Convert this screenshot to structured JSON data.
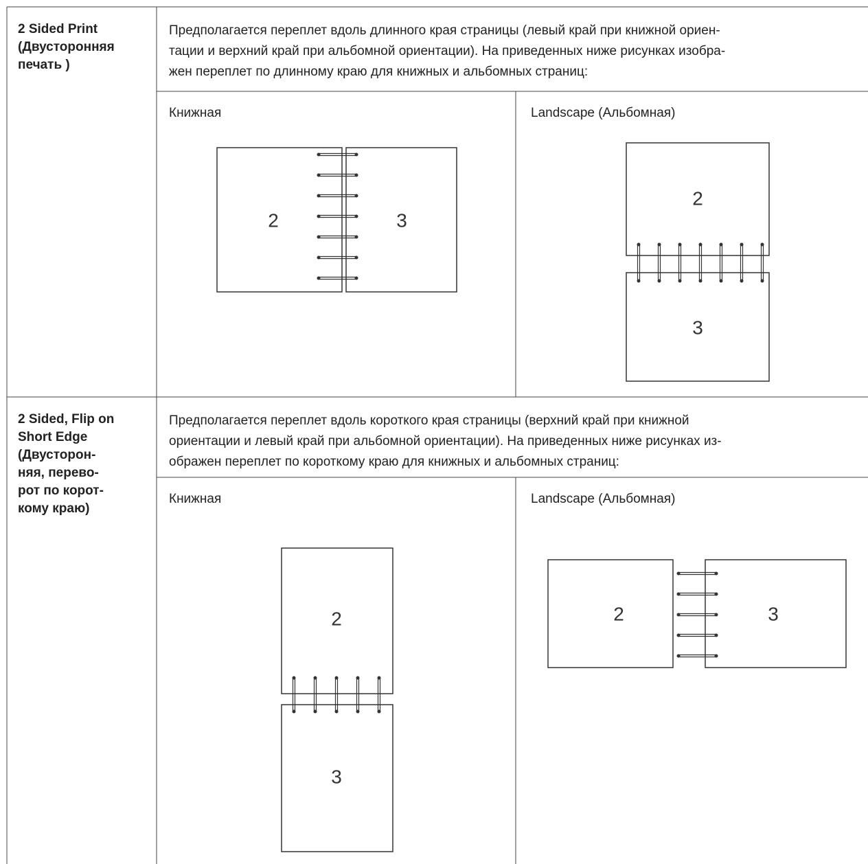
{
  "rows": [
    {
      "label_lines": [
        "2 Sided Print",
        "(Двусторонняя",
        "печать )"
      ],
      "description_lines": [
        "Предполагается переплет вдоль длинного края страницы (левый край при книжной ориен-",
        "тации и верхний край при альбомной ориентации). На приведенных ниже рисунках изобра-",
        "жен переплет по длинному краю для книжных и альбомных страниц:"
      ],
      "portrait": {
        "caption": "Книжная",
        "pages": [
          "2",
          "3"
        ]
      },
      "landscape": {
        "caption": "Landscape (Альбомная)",
        "pages": [
          "2",
          "3"
        ]
      }
    },
    {
      "label_lines": [
        "2 Sided, Flip on",
        "Short Edge",
        "(Двусторон-",
        "няя, перево-",
        "рот по корот-",
        "кому краю)"
      ],
      "description_lines": [
        "Предполагается переплет вдоль короткого края страницы (верхний край при книжной",
        "ориентации и левый край при альбомной ориентации). На приведенных ниже рисунках из-",
        "ображен переплет по короткому краю для книжных и альбомных страниц:"
      ],
      "portrait": {
        "caption": "Книжная",
        "pages": [
          "2",
          "3"
        ]
      },
      "landscape": {
        "caption": "Landscape (Альбомная)",
        "pages": [
          "2",
          "3"
        ]
      }
    }
  ]
}
